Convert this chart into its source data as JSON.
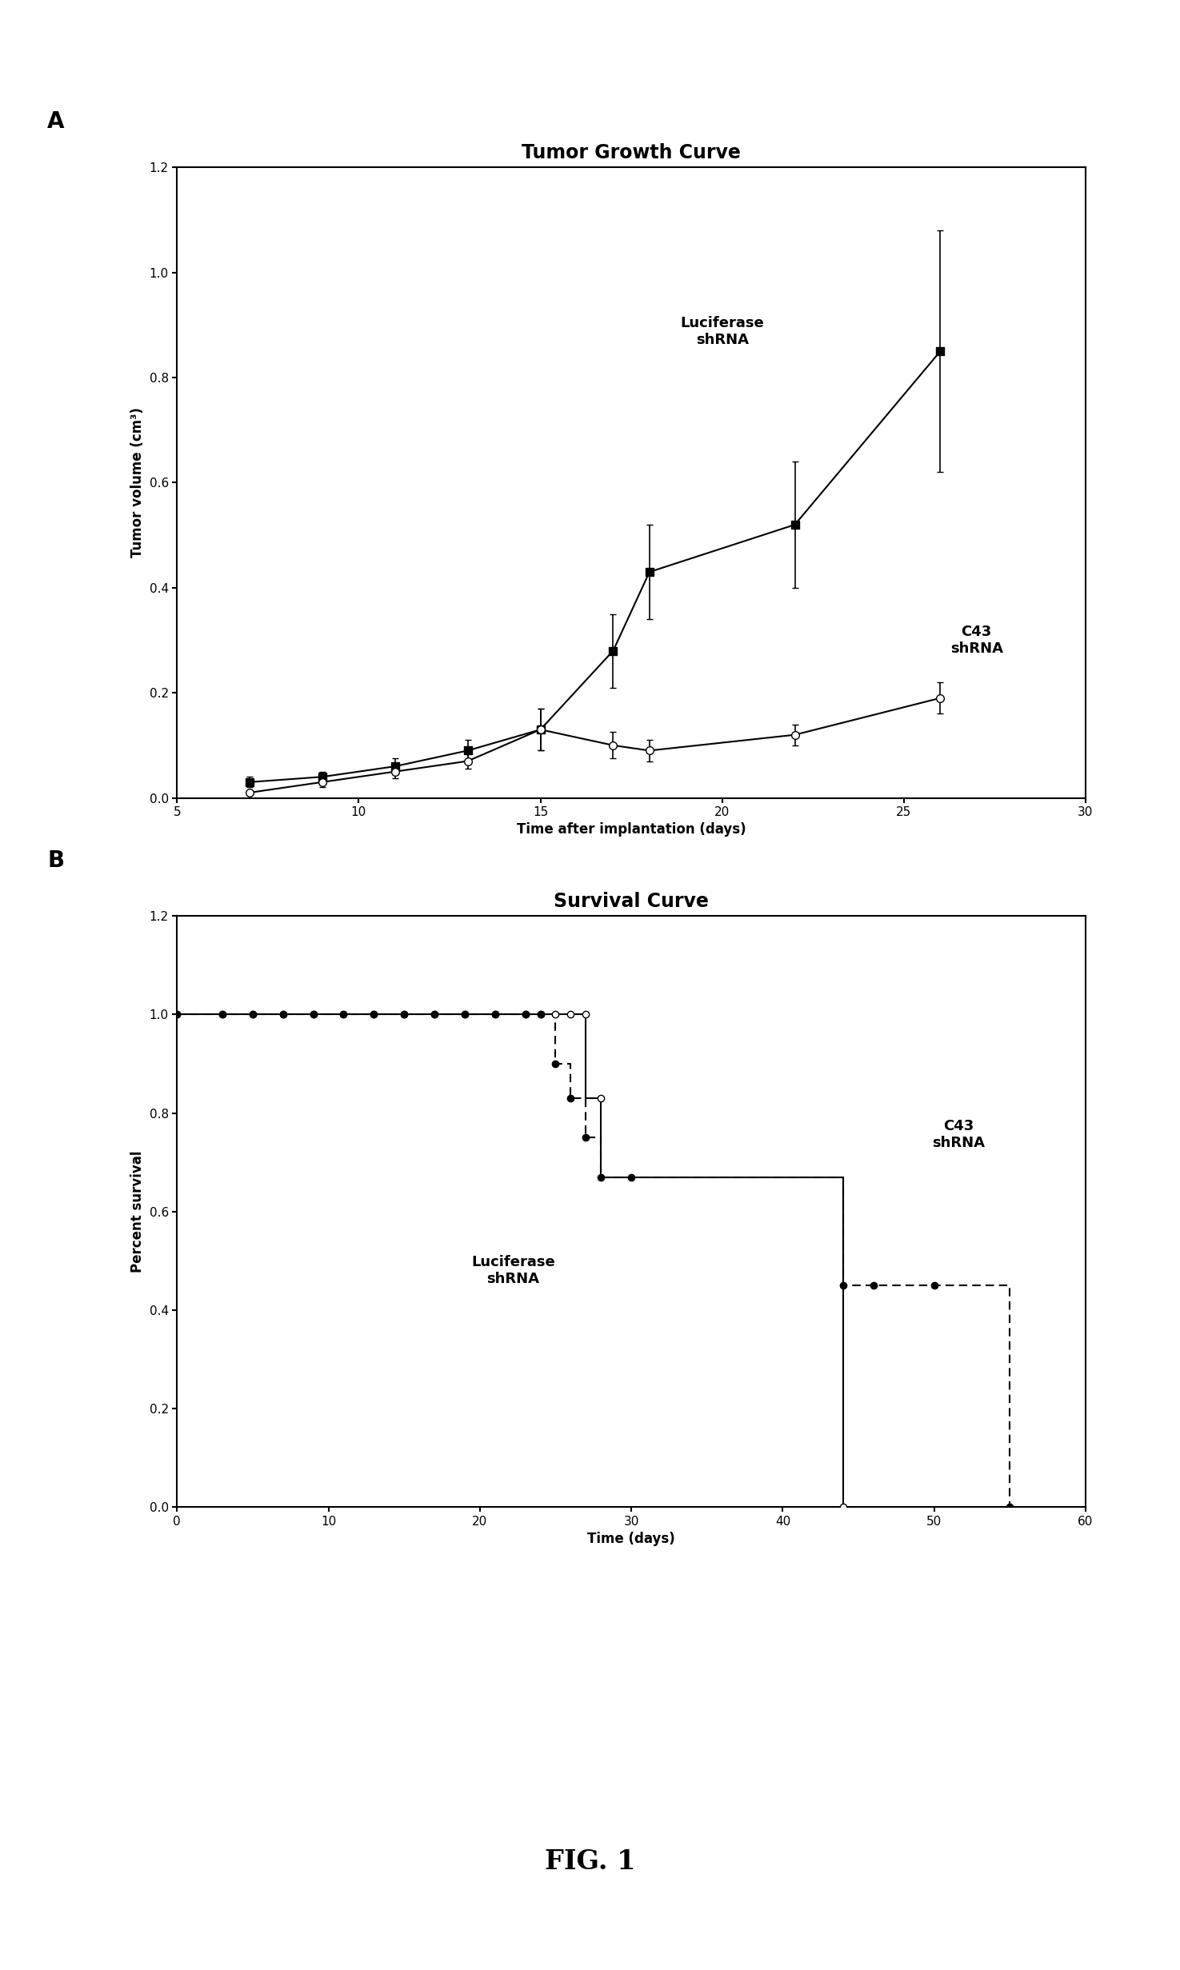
{
  "panel_A": {
    "title": "Tumor Growth Curve",
    "xlabel": "Time after implantation (days)",
    "ylabel": "Tumor volume (cm³)",
    "xlim": [
      5,
      30
    ],
    "ylim": [
      0.0,
      1.2
    ],
    "xticks": [
      5,
      10,
      15,
      20,
      25,
      30
    ],
    "yticks": [
      0.0,
      0.2,
      0.4,
      0.6,
      0.8,
      1.0,
      1.2
    ],
    "luciferase_x": [
      7,
      9,
      11,
      13,
      15,
      17,
      18,
      22,
      26
    ],
    "luciferase_y": [
      0.03,
      0.04,
      0.06,
      0.09,
      0.13,
      0.28,
      0.43,
      0.52,
      0.85
    ],
    "luciferase_yerr": [
      0.01,
      0.01,
      0.015,
      0.02,
      0.04,
      0.07,
      0.09,
      0.12,
      0.23
    ],
    "c43_x": [
      7,
      9,
      11,
      13,
      15,
      17,
      18,
      22,
      26
    ],
    "c43_y": [
      0.01,
      0.03,
      0.05,
      0.07,
      0.13,
      0.1,
      0.09,
      0.12,
      0.19
    ],
    "c43_yerr": [
      0.005,
      0.01,
      0.012,
      0.015,
      0.04,
      0.025,
      0.02,
      0.02,
      0.03
    ],
    "luciferase_label": "Luciferase\nshRNA",
    "c43_label": "C43\nshRNA",
    "label_A": "A"
  },
  "panel_B": {
    "title": "Survival Curve",
    "xlabel": "Time (days)",
    "ylabel": "Percent survival",
    "xlim": [
      0,
      60
    ],
    "ylim": [
      0.0,
      1.2
    ],
    "xticks": [
      0,
      10,
      20,
      30,
      40,
      50,
      60
    ],
    "yticks": [
      0.0,
      0.2,
      0.4,
      0.6,
      0.8,
      1.0,
      1.2
    ],
    "luc_step_x": [
      0,
      3,
      5,
      7,
      9,
      11,
      13,
      15,
      17,
      19,
      21,
      23,
      24,
      25,
      26,
      27,
      27,
      28,
      28,
      44,
      44
    ],
    "luc_step_y": [
      1.0,
      1.0,
      1.0,
      1.0,
      1.0,
      1.0,
      1.0,
      1.0,
      1.0,
      1.0,
      1.0,
      1.0,
      1.0,
      1.0,
      1.0,
      1.0,
      0.83,
      0.83,
      0.67,
      0.67,
      0.0
    ],
    "luc_pt_x": [
      0,
      3,
      5,
      7,
      9,
      11,
      13,
      15,
      17,
      19,
      21,
      23,
      24,
      25,
      26,
      27,
      28,
      44
    ],
    "luc_pt_y": [
      1.0,
      1.0,
      1.0,
      1.0,
      1.0,
      1.0,
      1.0,
      1.0,
      1.0,
      1.0,
      1.0,
      1.0,
      1.0,
      1.0,
      1.0,
      1.0,
      0.83,
      0.0
    ],
    "c43_step_x": [
      0,
      3,
      5,
      7,
      9,
      11,
      13,
      15,
      17,
      19,
      21,
      23,
      24,
      25,
      25,
      26,
      26,
      27,
      27,
      28,
      28,
      30,
      30,
      44,
      44,
      46,
      46,
      50,
      50,
      55,
      55
    ],
    "c43_step_y": [
      1.0,
      1.0,
      1.0,
      1.0,
      1.0,
      1.0,
      1.0,
      1.0,
      1.0,
      1.0,
      1.0,
      1.0,
      1.0,
      1.0,
      0.9,
      0.9,
      0.83,
      0.83,
      0.75,
      0.75,
      0.67,
      0.67,
      0.67,
      0.67,
      0.45,
      0.45,
      0.45,
      0.45,
      0.45,
      0.45,
      0.0
    ],
    "c43_pt_x": [
      0,
      3,
      5,
      7,
      9,
      11,
      13,
      15,
      17,
      19,
      21,
      23,
      24,
      25,
      26,
      27,
      28,
      30,
      44,
      46,
      50,
      55
    ],
    "c43_pt_y": [
      1.0,
      1.0,
      1.0,
      1.0,
      1.0,
      1.0,
      1.0,
      1.0,
      1.0,
      1.0,
      1.0,
      1.0,
      1.0,
      0.9,
      0.83,
      0.75,
      0.67,
      0.67,
      0.45,
      0.45,
      0.45,
      0.0
    ],
    "luciferase_label": "Luciferase\nshRNA",
    "c43_label": "C43\nshRNA",
    "label_B": "B"
  },
  "fig_label": "FIG. 1",
  "background_color": "#ffffff"
}
